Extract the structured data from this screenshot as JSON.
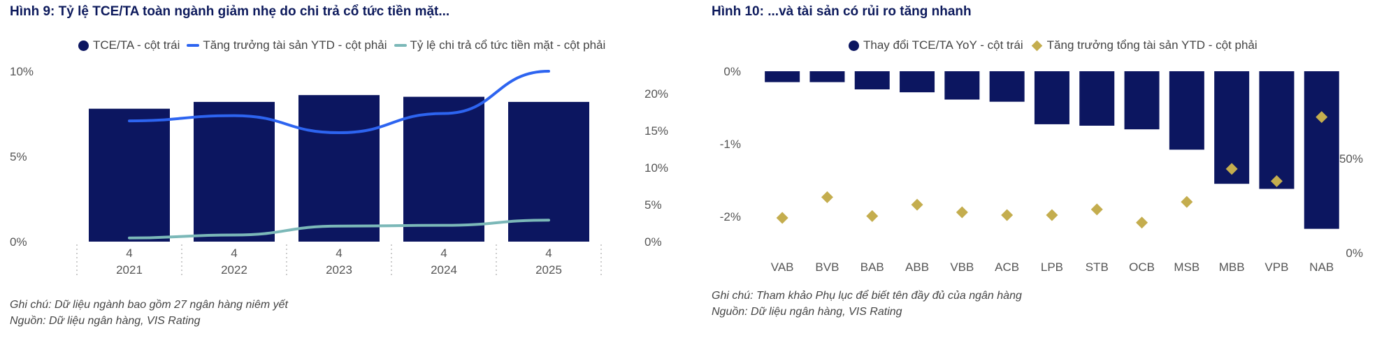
{
  "chart_data": [
    {
      "type": "bar+line",
      "title": "Hình 9: Tỷ lệ TCE/TA toàn ngành giảm nhẹ do chi trả cổ tức tiền mặt...",
      "legend": [
        {
          "label": "TCE/TA - cột trái",
          "kind": "dot",
          "color": "#0c1660"
        },
        {
          "label": "Tăng trưởng tài sản YTD - cột phải",
          "kind": "line",
          "color": "#2d64f0"
        },
        {
          "label": "Tỷ lệ chi trả cổ tức tiền mặt - cột phải",
          "kind": "line",
          "color": "#7bb8b8"
        }
      ],
      "categories": [
        {
          "top": "4",
          "bottom": "2021"
        },
        {
          "top": "4",
          "bottom": "2022"
        },
        {
          "top": "4",
          "bottom": "2023"
        },
        {
          "top": "4",
          "bottom": "2024"
        },
        {
          "top": "4",
          "bottom": "2025"
        }
      ],
      "series": [
        {
          "name": "TCE/TA - cột trái",
          "axis": "left",
          "type": "bar",
          "values": [
            7.8,
            8.2,
            8.6,
            8.5,
            8.2
          ]
        },
        {
          "name": "Tăng trưởng tài sản YTD - cột phải",
          "axis": "right",
          "type": "line",
          "values": [
            16.3,
            17.0,
            14.7,
            17.3,
            23.0
          ]
        },
        {
          "name": "Tỷ lệ chi trả cổ tức tiền mặt - cột phải",
          "axis": "right",
          "type": "line",
          "values": [
            0.5,
            0.9,
            2.1,
            2.2,
            2.9
          ]
        }
      ],
      "left_axis": {
        "ticks": [
          "10%",
          "5%",
          "0%"
        ],
        "tick_values": [
          10,
          5,
          0
        ],
        "range": [
          0,
          10
        ]
      },
      "right_axis": {
        "ticks": [
          "20%",
          "15%",
          "10%",
          "5%",
          "0%"
        ],
        "tick_values": [
          20,
          15,
          10,
          5,
          0
        ],
        "range": [
          0,
          23
        ]
      },
      "notes": [
        "Ghi chú: Dữ liệu ngành bao gồm 27 ngân hàng niêm yết",
        "Nguồn: Dữ liệu ngân hàng, VIS Rating"
      ]
    },
    {
      "type": "bar+scatter",
      "title": "Hình 10: ...và tài sản có rủi ro tăng nhanh",
      "legend": [
        {
          "label": "Thay đổi TCE/TA YoY - cột trái",
          "kind": "dot",
          "color": "#0c1660"
        },
        {
          "label": "Tăng trưởng tổng tài sản YTD - cột phải",
          "kind": "diamond",
          "color": "#c4ad4e"
        }
      ],
      "categories": [
        "VAB",
        "BVB",
        "BAB",
        "ABB",
        "VBB",
        "ACB",
        "LPB",
        "STB",
        "OCB",
        "MSB",
        "MBB",
        "VPB",
        "NAB"
      ],
      "series": [
        {
          "name": "Thay đổi TCE/TA YoY - cột trái",
          "axis": "left",
          "type": "bar",
          "values": [
            -0.15,
            -0.15,
            -0.25,
            -0.29,
            -0.39,
            -0.42,
            -0.73,
            -0.75,
            -0.8,
            -1.08,
            -1.55,
            -1.62,
            -2.17
          ]
        },
        {
          "name": "Tăng trưởng tổng tài sản YTD - cột phải",
          "axis": "right",
          "type": "scatter",
          "values": [
            18.5,
            29.5,
            19.5,
            25.5,
            21.5,
            20.0,
            20.0,
            23.0,
            16.0,
            27.0,
            44.5,
            38.0,
            72.0
          ]
        }
      ],
      "left_axis": {
        "ticks": [
          "0%",
          "-1%",
          "-2%"
        ],
        "tick_values": [
          0,
          -1,
          -2
        ],
        "range": [
          -2.5,
          0
        ]
      },
      "right_axis": {
        "ticks": [
          "50%",
          "0%"
        ],
        "tick_values": [
          50,
          0
        ],
        "range": [
          0,
          81
        ]
      },
      "notes": [
        "Ghi chú: Tham khảo Phụ lục để biết tên đầy đủ của ngân hàng",
        "Nguồn: Dữ liệu ngân hàng, VIS Rating"
      ]
    }
  ]
}
